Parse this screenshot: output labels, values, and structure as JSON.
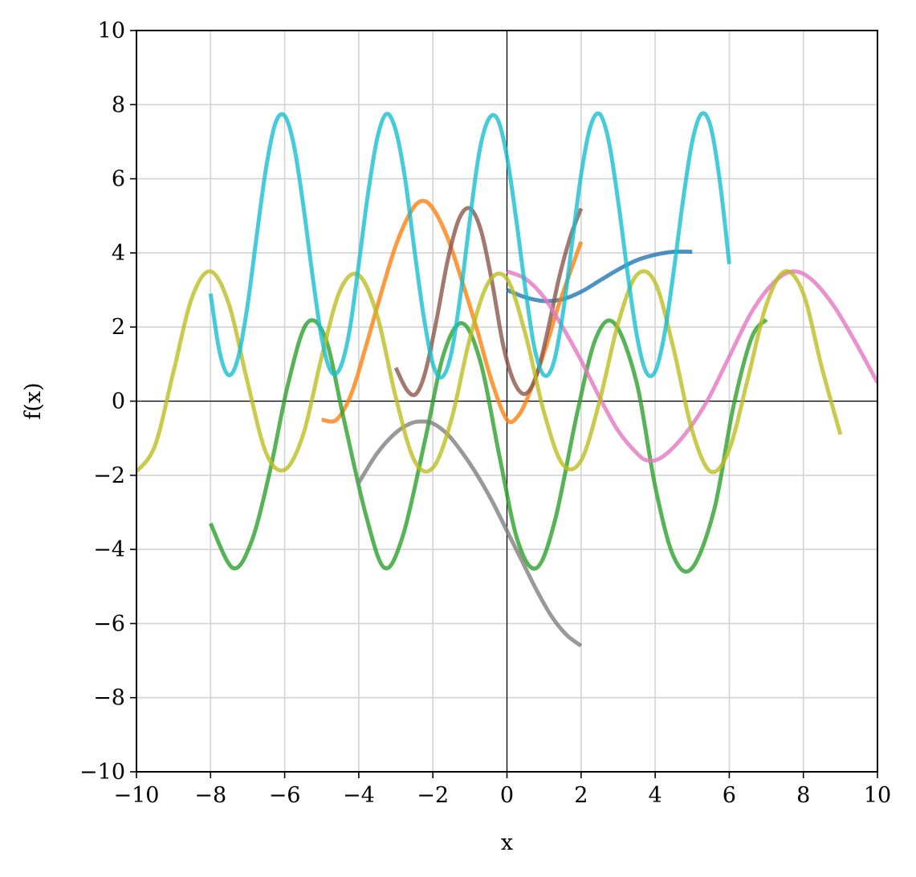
{
  "chart_data": {
    "type": "line",
    "xlabel": "x",
    "ylabel": "f(x)",
    "xlim": [
      -10,
      10
    ],
    "ylim": [
      -10,
      10
    ],
    "xticks": [
      -10,
      -8,
      -6,
      -4,
      -2,
      0,
      2,
      4,
      6,
      8,
      10
    ],
    "yticks": [
      -10,
      -8,
      -6,
      -4,
      -2,
      0,
      2,
      4,
      6,
      8,
      10
    ],
    "x_tick_labels": [
      "−10",
      "−8",
      "−6",
      "−4",
      "−2",
      "0",
      "2",
      "4",
      "6",
      "8",
      "10"
    ],
    "y_tick_labels": [
      "−10",
      "−8",
      "−6",
      "−4",
      "−2",
      "0",
      "2",
      "4",
      "6",
      "8",
      "10"
    ],
    "grid": true,
    "reference_lines": [
      "x=0",
      "y=0"
    ],
    "series": [
      {
        "color": "#1f77b4",
        "x": [
          0,
          0.5,
          1,
          1.5,
          2,
          2.5,
          3,
          3.5,
          4,
          4.5,
          5
        ],
        "y": [
          3.0,
          2.8,
          2.7,
          2.75,
          2.95,
          3.25,
          3.55,
          3.8,
          3.95,
          4.03,
          4.03
        ]
      },
      {
        "color": "#ff7f0e",
        "x": [
          -5,
          -4.6,
          -4.2,
          -3.8,
          -3.4,
          -3.0,
          -2.6,
          -2.3,
          -2.0,
          -1.6,
          -1.2,
          -0.8,
          -0.4,
          0.0,
          0.3,
          0.6,
          1.0,
          1.4,
          2.0
        ],
        "y": [
          -0.5,
          -0.5,
          0.2,
          1.5,
          2.9,
          4.2,
          5.1,
          5.4,
          5.2,
          4.4,
          3.2,
          1.9,
          0.5,
          -0.5,
          -0.4,
          0.2,
          1.3,
          2.6,
          4.3
        ]
      },
      {
        "color": "#2ca02c",
        "x": [
          -8,
          -7.4,
          -6.9,
          -6.4,
          -5.9,
          -5.4,
          -4.9,
          -4.4,
          -3.8,
          -3.3,
          -2.8,
          -2.2,
          -1.7,
          -1.2,
          -0.7,
          -0.2,
          0.3,
          0.8,
          1.3,
          1.9,
          2.4,
          2.9,
          3.5,
          4.0,
          4.5,
          5.0,
          5.6,
          6.1,
          6.6,
          7.0
        ],
        "y": [
          -3.3,
          -4.5,
          -3.8,
          -1.9,
          0.5,
          2.1,
          1.7,
          -0.5,
          -3.1,
          -4.5,
          -3.6,
          -1.0,
          1.3,
          2.1,
          1.0,
          -1.5,
          -3.8,
          -4.5,
          -3.2,
          -0.3,
          1.7,
          2.1,
          0.5,
          -2.3,
          -4.2,
          -4.5,
          -2.9,
          -0.2,
          1.7,
          2.2
        ]
      },
      {
        "color": "#8c564b",
        "x": [
          -3,
          -2.7,
          -2.45,
          -2.2,
          -1.9,
          -1.6,
          -1.3,
          -1.0,
          -0.7,
          -0.4,
          -0.1,
          0.2,
          0.5,
          0.8,
          1.1,
          1.4,
          1.7,
          2.0
        ],
        "y": [
          0.9,
          0.3,
          0.2,
          0.8,
          2.2,
          3.8,
          4.9,
          5.2,
          4.6,
          3.2,
          1.5,
          0.5,
          0.2,
          0.7,
          1.9,
          3.3,
          4.4,
          5.2
        ]
      },
      {
        "color": "#e377c2",
        "x": [
          0,
          0.5,
          1,
          1.5,
          2,
          2.5,
          3,
          3.5,
          3.8,
          4.2,
          4.8,
          5.4,
          6.0,
          6.6,
          7.2,
          7.7,
          8.2,
          8.8,
          9.4,
          10
        ],
        "y": [
          3.5,
          3.3,
          2.8,
          2.0,
          1.1,
          0.1,
          -0.8,
          -1.4,
          -1.6,
          -1.5,
          -0.9,
          0.0,
          1.2,
          2.4,
          3.2,
          3.5,
          3.3,
          2.6,
          1.6,
          0.5
        ]
      },
      {
        "color": "#7f7f7f",
        "x": [
          -4,
          -3.5,
          -3,
          -2.6,
          -2.3,
          -2.0,
          -1.6,
          -1.2,
          -0.8,
          -0.4,
          0,
          0.4,
          0.8,
          1.2,
          1.6,
          2.0
        ],
        "y": [
          -2.2,
          -1.4,
          -0.85,
          -0.6,
          -0.55,
          -0.6,
          -0.9,
          -1.4,
          -2.0,
          -2.7,
          -3.5,
          -4.3,
          -5.1,
          -5.8,
          -6.3,
          -6.6
        ]
      },
      {
        "color": "#bcbd22",
        "x": [
          -10,
          -9.5,
          -9.0,
          -8.5,
          -8.0,
          -7.5,
          -7.0,
          -6.5,
          -6.0,
          -5.5,
          -5.0,
          -4.5,
          -4.0,
          -3.5,
          -3.0,
          -2.5,
          -2.0,
          -1.5,
          -1.0,
          -0.5,
          0.0,
          0.5,
          1.0,
          1.5,
          2.0,
          2.5,
          3.0,
          3.5,
          4.0,
          4.5,
          5.0,
          5.5,
          6.0,
          6.5,
          7.0,
          7.5,
          8.0,
          8.5,
          9.0
        ],
        "y": [
          -1.9,
          -1.2,
          0.8,
          2.8,
          3.5,
          2.6,
          0.5,
          -1.4,
          -1.85,
          -0.9,
          1.2,
          3.0,
          3.4,
          2.3,
          0.1,
          -1.6,
          -1.8,
          -0.5,
          1.7,
          3.2,
          3.3,
          1.8,
          -0.3,
          -1.7,
          -1.6,
          0.0,
          2.1,
          3.4,
          3.2,
          1.4,
          -0.8,
          -1.9,
          -1.3,
          0.6,
          2.6,
          3.5,
          2.9,
          0.9,
          -0.9
        ]
      },
      {
        "color": "#17becf",
        "x": [
          -8,
          -7.75,
          -7.5,
          -7.25,
          -7.0,
          -6.75,
          -6.5,
          -6.25,
          -6.0,
          -5.75,
          -5.5,
          -5.25,
          -5.0,
          -4.75,
          -4.5,
          -4.25,
          -4.0,
          -3.75,
          -3.5,
          -3.25,
          -3.0,
          -2.75,
          -2.5,
          -2.25,
          -2.0,
          -1.75,
          -1.5,
          -1.25,
          -1.0,
          -0.75,
          -0.5,
          -0.25,
          0.0,
          0.25,
          0.5,
          0.75,
          1.0,
          1.25,
          1.5,
          1.75,
          2.0,
          2.25,
          2.5,
          2.75,
          3.0,
          3.25,
          3.5,
          3.75,
          4.0,
          4.25,
          4.5,
          4.75,
          5.0,
          5.25,
          5.5,
          5.75,
          6.0
        ],
        "y": [
          2.9,
          1.3,
          0.7,
          1.2,
          2.6,
          4.5,
          6.3,
          7.5,
          7.7,
          6.9,
          5.3,
          3.4,
          1.7,
          0.8,
          0.9,
          1.9,
          3.7,
          5.6,
          7.1,
          7.75,
          7.3,
          6.0,
          4.1,
          2.3,
          1.0,
          0.65,
          1.3,
          2.9,
          4.9,
          6.7,
          7.6,
          7.6,
          6.6,
          4.9,
          3.0,
          1.4,
          0.7,
          1.0,
          2.3,
          4.2,
          6.1,
          7.4,
          7.75,
          7.0,
          5.4,
          3.5,
          1.8,
          0.8,
          0.8,
          1.8,
          3.5,
          5.4,
          7.0,
          7.75,
          7.4,
          5.9,
          3.7
        ]
      }
    ]
  }
}
